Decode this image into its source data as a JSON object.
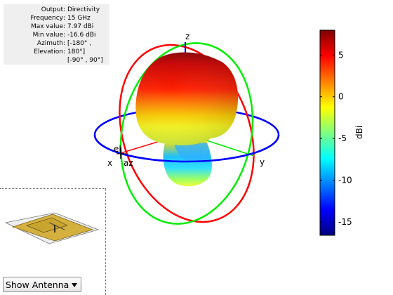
{
  "info": {
    "rows": [
      {
        "key": "Output",
        "value": "Directivity"
      },
      {
        "key": "Frequency",
        "value": "15 GHz"
      },
      {
        "key": "Max value",
        "value": "7.97 dBi"
      },
      {
        "key": "Min value",
        "value": "-16.6 dBi"
      },
      {
        "key": "Azimuth",
        "value": "[-180° ,"
      },
      {
        "key": "Elevation",
        "value": "180°]"
      }
    ],
    "continuation": "[-90° , 90°]"
  },
  "axes": {
    "x_label": "x",
    "y_label": "y",
    "z_label": "z",
    "el_label": "el",
    "az_label": "az"
  },
  "colorbar": {
    "unit_label": "dBi",
    "ticks": [
      "5",
      "0",
      "-5",
      "-10",
      "-15"
    ],
    "min": -16.6,
    "max": 7.97
  },
  "colors": {
    "ring_xy": "#0000ff",
    "ring_xz": "#ff0000",
    "ring_yz": "#00ff00"
  },
  "antenna_control": {
    "label": "Show Antenna",
    "icon": "chevron-down-icon"
  }
}
